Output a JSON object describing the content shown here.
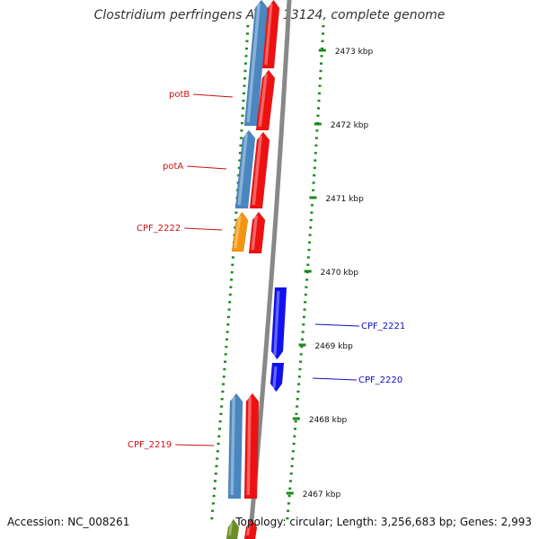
{
  "title": "Clostridium perfringens ATCC 13124, complete genome",
  "footer": {
    "accession": "Accession: NC_008261",
    "topology": "Topology: circular; Length: 3,256,683 bp; Genes: 2,993"
  },
  "colors": {
    "forward_gene": "#ee1111",
    "reverse_gene": "#1111ee",
    "cds_blue": "#4a86c0",
    "cds_orange": "#f5940f",
    "backbone": "#888888",
    "tick_green": "#1a8a1a",
    "label_red": "#cc1111",
    "label_blue": "#1111bb"
  },
  "ticks": [
    {
      "label": "2473 kbp"
    },
    {
      "label": "2472 kbp"
    },
    {
      "label": "2471 kbp"
    },
    {
      "label": "2470 kbp"
    },
    {
      "label": "2469 kbp"
    },
    {
      "label": "2468 kbp"
    },
    {
      "label": "2467 kbp"
    }
  ],
  "gene_labels": [
    {
      "name": "potB",
      "strand": "forward"
    },
    {
      "name": "potA",
      "strand": "forward"
    },
    {
      "name": "CPF_2222",
      "strand": "forward"
    },
    {
      "name": "CPF_2221",
      "strand": "reverse"
    },
    {
      "name": "CPF_2220",
      "strand": "reverse"
    },
    {
      "name": "CPF_2219",
      "strand": "forward"
    }
  ]
}
